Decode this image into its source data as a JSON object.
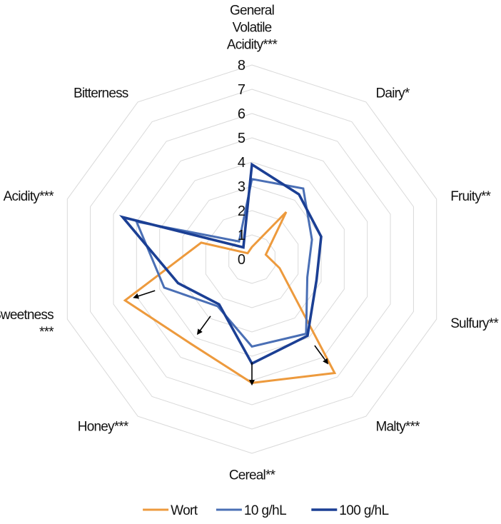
{
  "chart_data": {
    "type": "radar",
    "categories": [
      "General Volatile Acidity***",
      "Dairy*",
      "Fruity**",
      "Sulfury**",
      "Malty***",
      "Cereal**",
      "Honey***",
      "Sweetness ***",
      "Acidity***",
      "Bitterness"
    ],
    "category_lines": [
      [
        "General",
        "Volatile",
        "Acidity***"
      ],
      [
        "Dairy*"
      ],
      [
        "Fruity**"
      ],
      [
        "Sulfury**"
      ],
      [
        "Malty***"
      ],
      [
        "Cereal**"
      ],
      [
        "Honey***"
      ],
      [
        "Sweetness",
        "***"
      ],
      [
        "Acidity***"
      ],
      [
        "Bitterness"
      ]
    ],
    "rmax": 8,
    "ticks": [
      "0",
      "1",
      "2",
      "3",
      "4",
      "5",
      "6",
      "7",
      "8"
    ],
    "series": [
      {
        "name": "Wort",
        "color": "#ED9A3D",
        "values": [
          0.5,
          2.4,
          0.6,
          1.2,
          5.8,
          5.1,
          4.3,
          5.5,
          2.2,
          0.3
        ]
      },
      {
        "name": "10 g/hL",
        "color": "#4A6FB5",
        "values": [
          3.3,
          3.6,
          2.6,
          2.4,
          3.8,
          3.6,
          2.4,
          3.8,
          5.0,
          0.9
        ]
      },
      {
        "name": "100 g/hL",
        "color": "#1B3F94",
        "values": [
          3.9,
          3.3,
          3.0,
          2.8,
          3.9,
          4.3,
          2.3,
          3.2,
          5.6,
          0.6
        ]
      }
    ],
    "grid": true,
    "legend_position": "bottom"
  }
}
